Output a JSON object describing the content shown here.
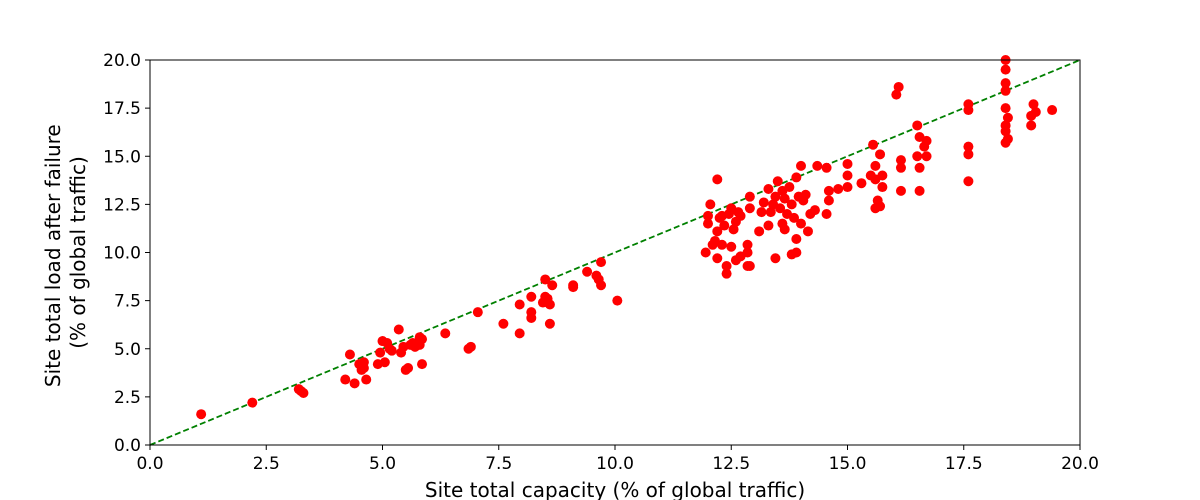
{
  "chart_data": {
    "type": "scatter",
    "title": "",
    "xlabel": "Site total capacity (% of global traffic)",
    "ylabel_lines": [
      "Site total load after failure",
      "(% of global traffic)"
    ],
    "xlim": [
      0,
      20
    ],
    "ylim": [
      0,
      20
    ],
    "xticks": [
      "0.0",
      "2.5",
      "5.0",
      "7.5",
      "10.0",
      "12.5",
      "15.0",
      "17.5",
      "20.0"
    ],
    "yticks": [
      "0.0",
      "2.5",
      "5.0",
      "7.5",
      "10.0",
      "12.5",
      "15.0",
      "17.5",
      "20.0"
    ],
    "grid": false,
    "legend": "none",
    "reference_line": {
      "style": "dashed",
      "color": "#008000",
      "x": [
        0,
        20
      ],
      "y": [
        0,
        20
      ]
    },
    "series": [
      {
        "marker_color": "#ff0000",
        "points": [
          [
            1.1,
            1.6
          ],
          [
            2.2,
            2.2
          ],
          [
            3.2,
            2.9
          ],
          [
            3.3,
            2.7
          ],
          [
            3.25,
            2.8
          ],
          [
            4.2,
            3.4
          ],
          [
            4.3,
            4.7
          ],
          [
            4.4,
            3.2
          ],
          [
            4.5,
            4.2
          ],
          [
            4.55,
            3.9
          ],
          [
            4.6,
            4.0
          ],
          [
            4.65,
            3.4
          ],
          [
            4.6,
            4.3
          ],
          [
            4.9,
            4.2
          ],
          [
            4.95,
            4.8
          ],
          [
            5.0,
            5.4
          ],
          [
            5.05,
            4.3
          ],
          [
            5.1,
            5.3
          ],
          [
            5.15,
            5.0
          ],
          [
            5.2,
            4.9
          ],
          [
            5.35,
            6.0
          ],
          [
            5.4,
            4.8
          ],
          [
            5.45,
            5.1
          ],
          [
            5.5,
            3.9
          ],
          [
            5.55,
            4.0
          ],
          [
            5.6,
            5.2
          ],
          [
            5.65,
            5.3
          ],
          [
            5.7,
            5.1
          ],
          [
            5.8,
            5.6
          ],
          [
            5.85,
            4.2
          ],
          [
            5.85,
            5.5
          ],
          [
            5.8,
            5.2
          ],
          [
            6.35,
            5.8
          ],
          [
            6.85,
            5.0
          ],
          [
            6.9,
            5.1
          ],
          [
            7.05,
            6.9
          ],
          [
            7.6,
            6.3
          ],
          [
            7.95,
            7.3
          ],
          [
            7.95,
            5.8
          ],
          [
            8.2,
            7.7
          ],
          [
            8.2,
            6.9
          ],
          [
            8.2,
            6.6
          ],
          [
            8.45,
            7.4
          ],
          [
            8.5,
            8.6
          ],
          [
            8.5,
            7.7
          ],
          [
            8.55,
            7.6
          ],
          [
            8.6,
            6.3
          ],
          [
            8.6,
            7.3
          ],
          [
            8.65,
            8.3
          ],
          [
            9.1,
            8.2
          ],
          [
            9.1,
            8.3
          ],
          [
            9.4,
            9.0
          ],
          [
            9.6,
            8.8
          ],
          [
            9.65,
            8.6
          ],
          [
            9.7,
            8.3
          ],
          [
            9.7,
            9.5
          ],
          [
            10.05,
            7.5
          ],
          [
            11.95,
            10.0
          ],
          [
            12.0,
            11.5
          ],
          [
            12.0,
            11.9
          ],
          [
            12.05,
            12.5
          ],
          [
            12.1,
            10.4
          ],
          [
            12.15,
            10.6
          ],
          [
            12.2,
            11.1
          ],
          [
            12.2,
            13.8
          ],
          [
            12.2,
            9.7
          ],
          [
            12.25,
            11.8
          ],
          [
            12.3,
            10.4
          ],
          [
            12.3,
            11.9
          ],
          [
            12.35,
            11.4
          ],
          [
            12.4,
            8.9
          ],
          [
            12.4,
            9.3
          ],
          [
            12.45,
            12.0
          ],
          [
            12.5,
            10.3
          ],
          [
            12.5,
            12.3
          ],
          [
            12.55,
            11.2
          ],
          [
            12.6,
            9.6
          ],
          [
            12.6,
            11.6
          ],
          [
            12.65,
            12.1
          ],
          [
            12.7,
            9.8
          ],
          [
            12.7,
            11.9
          ],
          [
            12.85,
            9.3
          ],
          [
            12.85,
            10.0
          ],
          [
            12.85,
            10.4
          ],
          [
            12.9,
            9.3
          ],
          [
            12.9,
            12.3
          ],
          [
            12.9,
            12.9
          ],
          [
            13.1,
            11.1
          ],
          [
            13.15,
            12.1
          ],
          [
            13.2,
            12.6
          ],
          [
            13.3,
            11.4
          ],
          [
            13.3,
            13.3
          ],
          [
            13.35,
            12.1
          ],
          [
            13.4,
            12.5
          ],
          [
            13.45,
            12.9
          ],
          [
            13.45,
            9.7
          ],
          [
            13.5,
            13.7
          ],
          [
            13.55,
            12.3
          ],
          [
            13.6,
            11.5
          ],
          [
            13.6,
            13.2
          ],
          [
            13.65,
            12.8
          ],
          [
            13.65,
            11.2
          ],
          [
            13.7,
            12.0
          ],
          [
            13.75,
            13.4
          ],
          [
            13.8,
            9.9
          ],
          [
            13.8,
            12.5
          ],
          [
            13.85,
            11.8
          ],
          [
            13.9,
            10.7
          ],
          [
            13.9,
            10.0
          ],
          [
            13.9,
            13.9
          ],
          [
            13.95,
            12.9
          ],
          [
            14.0,
            14.5
          ],
          [
            14.0,
            11.5
          ],
          [
            14.05,
            12.7
          ],
          [
            14.1,
            13.0
          ],
          [
            14.15,
            11.1
          ],
          [
            14.2,
            12.0
          ],
          [
            14.3,
            12.2
          ],
          [
            14.35,
            14.5
          ],
          [
            14.55,
            12.0
          ],
          [
            14.55,
            14.4
          ],
          [
            14.6,
            13.2
          ],
          [
            14.6,
            12.7
          ],
          [
            14.8,
            13.3
          ],
          [
            15.0,
            14.6
          ],
          [
            15.0,
            13.4
          ],
          [
            15.0,
            14.0
          ],
          [
            15.3,
            13.6
          ],
          [
            15.5,
            14.0
          ],
          [
            15.55,
            15.6
          ],
          [
            15.6,
            14.5
          ],
          [
            15.6,
            13.8
          ],
          [
            15.6,
            12.3
          ],
          [
            15.65,
            12.7
          ],
          [
            15.7,
            12.4
          ],
          [
            15.7,
            15.1
          ],
          [
            15.75,
            14.0
          ],
          [
            15.75,
            13.4
          ],
          [
            16.05,
            18.2
          ],
          [
            16.1,
            18.6
          ],
          [
            16.15,
            14.8
          ],
          [
            16.15,
            13.2
          ],
          [
            16.15,
            14.4
          ],
          [
            16.5,
            16.6
          ],
          [
            16.5,
            15.0
          ],
          [
            16.55,
            16.0
          ],
          [
            16.55,
            14.4
          ],
          [
            16.55,
            13.2
          ],
          [
            16.65,
            15.5
          ],
          [
            16.7,
            15.8
          ],
          [
            16.7,
            15.0
          ],
          [
            17.6,
            17.7
          ],
          [
            17.6,
            17.4
          ],
          [
            17.6,
            15.5
          ],
          [
            17.6,
            15.1
          ],
          [
            17.6,
            13.7
          ],
          [
            18.4,
            20.0
          ],
          [
            18.4,
            19.5
          ],
          [
            18.4,
            18.8
          ],
          [
            18.4,
            18.4
          ],
          [
            18.4,
            17.5
          ],
          [
            18.45,
            17.0
          ],
          [
            18.4,
            16.6
          ],
          [
            18.4,
            16.3
          ],
          [
            18.45,
            15.9
          ],
          [
            18.4,
            15.7
          ],
          [
            18.95,
            17.1
          ],
          [
            18.95,
            16.6
          ],
          [
            19.0,
            17.7
          ],
          [
            19.05,
            17.3
          ],
          [
            19.4,
            17.4
          ]
        ]
      }
    ]
  }
}
